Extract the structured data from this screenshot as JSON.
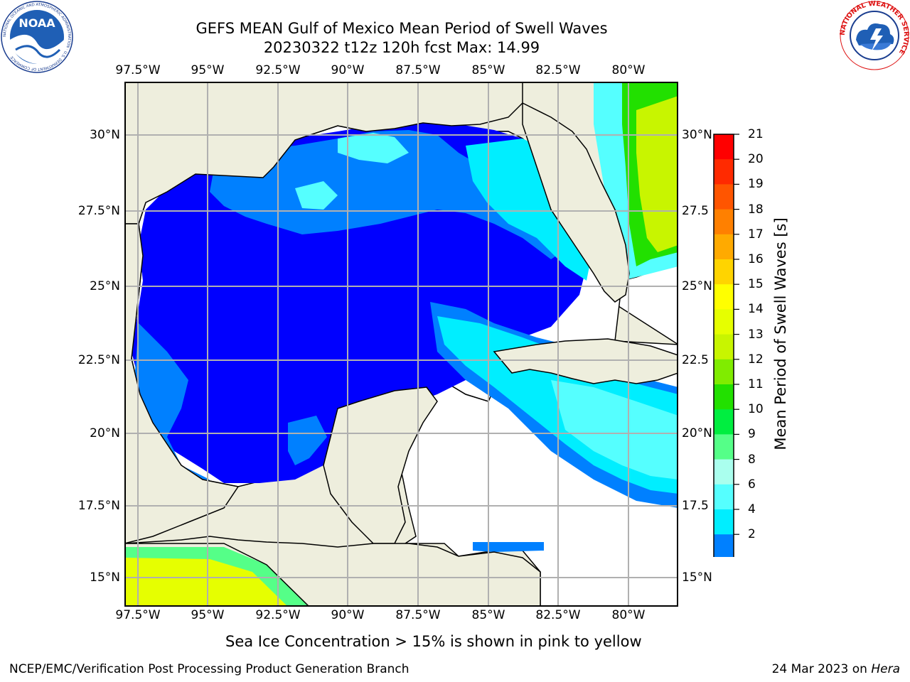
{
  "title": {
    "line1": "GEFS MEAN Gulf of Mexico Mean Period of Swell Waves",
    "line2": "20230322 t12z 120h fcst   Max: 14.99"
  },
  "map": {
    "lon_ticks_top": [
      "97.5°W",
      "95°W",
      "92.5°W",
      "90°W",
      "87.5°W",
      "85°W",
      "82.5°W",
      "80°W"
    ],
    "lon_ticks_bottom": [
      "97.5°W",
      "95°W",
      "92.5°W",
      "90°W",
      "87.5°W",
      "85°W",
      "82.5°W",
      "80°W"
    ],
    "lat_ticks_left": [
      "30°N",
      "27.5°N",
      "25°N",
      "22.5°N",
      "20°N",
      "17.5°N",
      "15°N"
    ],
    "lat_ticks_right": [
      "30°N",
      "27.5",
      "25°N",
      "22.5",
      "20°N",
      "17.5",
      "15°N"
    ],
    "colors": {
      "land": "#eeeedd",
      "ocean_low": "#0000ff",
      "gridline": "#b0b0b0"
    }
  },
  "colorbar": {
    "label": "Mean Period of Swell Waves [s]",
    "ticks": [
      "21",
      "20",
      "19",
      "18",
      "17",
      "16",
      "15",
      "14",
      "13",
      "12",
      "11",
      "10",
      "9",
      "8",
      "6",
      "4",
      "2"
    ],
    "colors": [
      "#ff0000",
      "#ff2a00",
      "#ff5500",
      "#ff8000",
      "#ffaa00",
      "#ffd400",
      "#ffff00",
      "#e6ff00",
      "#c8f500",
      "#80ec00",
      "#22e000",
      "#00ee40",
      "#55ff88",
      "#aaffee",
      "#55ffff",
      "#00eeff",
      "#0080ff"
    ],
    "extend_color": "#0000ff"
  },
  "note": "Sea Ice Concentration > 15% is shown in pink to yellow",
  "footer": {
    "left": "NCEP/EMC/Verification Post Processing Product Generation Branch",
    "date": "24 Mar 2023 on ",
    "machine": "Hera"
  },
  "logos": {
    "noaa_text": "NOAA",
    "noaa_ring_text": "NATIONAL OCEANIC AND ATMOSPHERIC ADMINISTRATION · U.S. DEPARTMENT OF COMMERCE",
    "nws_ring_text": "NATIONAL WEATHER SERVICE"
  }
}
